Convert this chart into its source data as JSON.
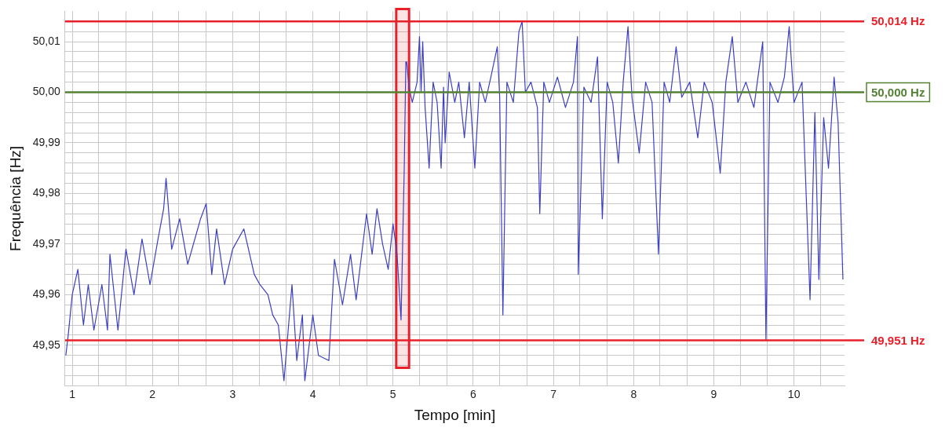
{
  "chart_data": {
    "type": "line",
    "xlabel": "Tempo [min]",
    "ylabel": "Frequência [Hz]",
    "xlim": [
      0.91,
      10.63
    ],
    "ylim": [
      49.942,
      50.016
    ],
    "xticks": [
      1,
      {
        "value": 1.33,
        "label": null
      },
      {
        "value": 1.67,
        "label": null
      },
      2,
      {
        "value": 2.33,
        "label": null
      },
      {
        "value": 2.67,
        "label": null
      },
      3,
      {
        "value": 3.33,
        "label": null
      },
      {
        "value": 3.67,
        "label": null
      },
      4,
      {
        "value": 4.33,
        "label": null
      },
      {
        "value": 4.67,
        "label": null
      },
      5,
      {
        "value": 5.33,
        "label": null
      },
      {
        "value": 5.67,
        "label": null
      },
      6,
      {
        "value": 6.33,
        "label": null
      },
      {
        "value": 6.67,
        "label": null
      },
      7,
      {
        "value": 7.33,
        "label": null
      },
      {
        "value": 7.67,
        "label": null
      },
      8,
      {
        "value": 8.33,
        "label": null
      },
      {
        "value": 8.67,
        "label": null
      },
      9,
      {
        "value": 9.33,
        "label": null
      },
      {
        "value": 9.67,
        "label": null
      },
      10,
      {
        "value": 10.33,
        "label": null
      }
    ],
    "yticks": [
      {
        "value": 49.944,
        "label": null
      },
      {
        "value": 49.946,
        "label": null
      },
      {
        "value": 49.948,
        "label": null
      },
      {
        "value": 49.95,
        "label": "49,95"
      },
      {
        "value": 49.952,
        "label": null
      },
      {
        "value": 49.954,
        "label": null
      },
      {
        "value": 49.956,
        "label": null
      },
      {
        "value": 49.958,
        "label": null
      },
      {
        "value": 49.96,
        "label": "49,96"
      },
      {
        "value": 49.962,
        "label": null
      },
      {
        "value": 49.964,
        "label": null
      },
      {
        "value": 49.966,
        "label": null
      },
      {
        "value": 49.968,
        "label": null
      },
      {
        "value": 49.97,
        "label": "49,97"
      },
      {
        "value": 49.972,
        "label": null
      },
      {
        "value": 49.974,
        "label": null
      },
      {
        "value": 49.976,
        "label": null
      },
      {
        "value": 49.978,
        "label": null
      },
      {
        "value": 49.98,
        "label": "49,98"
      },
      {
        "value": 49.982,
        "label": null
      },
      {
        "value": 49.984,
        "label": null
      },
      {
        "value": 49.986,
        "label": null
      },
      {
        "value": 49.988,
        "label": null
      },
      {
        "value": 49.99,
        "label": "49,99"
      },
      {
        "value": 49.992,
        "label": null
      },
      {
        "value": 49.994,
        "label": null
      },
      {
        "value": 49.996,
        "label": null
      },
      {
        "value": 49.998,
        "label": null
      },
      {
        "value": 50.0,
        "label": "50,00"
      },
      {
        "value": 50.002,
        "label": null
      },
      {
        "value": 50.004,
        "label": null
      },
      {
        "value": 50.006,
        "label": null
      },
      {
        "value": 50.008,
        "label": null
      },
      {
        "value": 50.01,
        "label": "50,01"
      },
      {
        "value": 50.012,
        "label": null
      }
    ],
    "grid": true,
    "legend": false,
    "marker": "none",
    "line_style": "solid",
    "series": [
      {
        "color": "#3b3fc4",
        "x": [
          0.92,
          0.95,
          1.0,
          1.07,
          1.14,
          1.2,
          1.27,
          1.37,
          1.44,
          1.47,
          1.57,
          1.67,
          1.77,
          1.87,
          1.97,
          2.07,
          2.14,
          2.17,
          2.24,
          2.34,
          2.44,
          2.6,
          2.67,
          2.74,
          2.8,
          2.9,
          3.0,
          3.14,
          3.27,
          3.34,
          3.44,
          3.5,
          3.57,
          3.64,
          3.74,
          3.8,
          3.87,
          3.9,
          4.0,
          4.07,
          4.2,
          4.27,
          4.37,
          4.47,
          4.54,
          4.67,
          4.74,
          4.8,
          4.87,
          4.94,
          5.0,
          5.05,
          5.1,
          5.14,
          5.16,
          5.17,
          5.2,
          5.24,
          5.3,
          5.33,
          5.35,
          5.37,
          5.4,
          5.45,
          5.5,
          5.55,
          5.6,
          5.63,
          5.65,
          5.7,
          5.77,
          5.82,
          5.89,
          5.95,
          6.02,
          6.08,
          6.15,
          6.22,
          6.3,
          6.33,
          6.37,
          6.42,
          6.5,
          6.57,
          6.61,
          6.65,
          6.72,
          6.8,
          6.83,
          6.88,
          6.95,
          7.05,
          7.15,
          7.25,
          7.3,
          7.31,
          7.38,
          7.47,
          7.55,
          7.61,
          7.67,
          7.74,
          7.81,
          7.87,
          7.93,
          7.98,
          8.07,
          8.15,
          8.23,
          8.31,
          8.38,
          8.45,
          8.53,
          8.6,
          8.7,
          8.8,
          8.88,
          8.98,
          9.08,
          9.15,
          9.23,
          9.3,
          9.4,
          9.5,
          9.61,
          9.65,
          9.7,
          9.8,
          9.88,
          9.94,
          10.0,
          10.1,
          10.2,
          10.26,
          10.31,
          10.37,
          10.43,
          10.5,
          10.55,
          10.61
        ],
        "values": [
          49.948,
          49.952,
          49.96,
          49.965,
          49.954,
          49.962,
          49.953,
          49.962,
          49.953,
          49.968,
          49.953,
          49.969,
          49.96,
          49.971,
          49.962,
          49.971,
          49.977,
          49.983,
          49.969,
          49.975,
          49.966,
          49.975,
          49.978,
          49.964,
          49.973,
          49.962,
          49.969,
          49.973,
          49.964,
          49.962,
          49.96,
          49.956,
          49.954,
          49.943,
          49.962,
          49.947,
          49.956,
          49.943,
          49.956,
          49.948,
          49.947,
          49.967,
          49.958,
          49.968,
          49.959,
          49.976,
          49.968,
          49.977,
          49.97,
          49.965,
          49.974,
          49.968,
          49.955,
          49.985,
          50.006,
          50.006,
          50.001,
          49.998,
          50.002,
          50.011,
          50.0,
          50.01,
          49.997,
          49.985,
          50.002,
          49.998,
          49.985,
          50.001,
          49.99,
          50.004,
          49.998,
          50.002,
          49.991,
          50.002,
          49.985,
          50.002,
          49.998,
          50.003,
          50.009,
          49.999,
          49.956,
          50.002,
          49.998,
          50.012,
          50.014,
          50.0,
          50.002,
          49.997,
          49.976,
          50.002,
          49.998,
          50.003,
          49.997,
          50.002,
          50.011,
          49.964,
          50.001,
          49.998,
          50.007,
          49.975,
          50.002,
          49.998,
          49.986,
          50.002,
          50.013,
          49.999,
          49.988,
          50.002,
          49.998,
          49.968,
          50.002,
          49.998,
          50.009,
          49.999,
          50.002,
          49.991,
          50.002,
          49.998,
          49.984,
          50.002,
          50.011,
          49.998,
          50.002,
          49.997,
          50.01,
          49.951,
          50.002,
          49.998,
          50.003,
          50.013,
          49.998,
          50.002,
          49.959,
          49.996,
          49.963,
          49.995,
          49.985,
          50.003,
          49.994,
          49.963
        ]
      }
    ],
    "ref_lines": [
      {
        "axis": "y",
        "value": 50.014,
        "label": "50,014 Hz",
        "color": "#e8202a"
      },
      {
        "axis": "y",
        "value": 50.0,
        "label": "50,000 Hz",
        "color": "#548235"
      },
      {
        "axis": "y",
        "value": 49.951,
        "label": "49,951 Hz",
        "color": "#e8202a"
      }
    ],
    "bands": [
      {
        "axis": "x",
        "from": 5.04,
        "to": 5.2,
        "color": "#e8202a"
      }
    ]
  }
}
